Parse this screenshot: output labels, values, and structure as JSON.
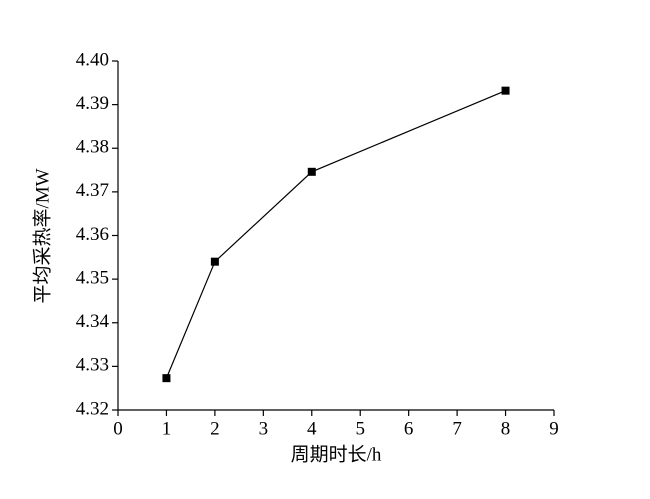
{
  "chart_data": {
    "type": "line",
    "x_label": "周期时长/h",
    "y_label": "平均采热率/MW",
    "x": [
      1,
      2,
      4,
      8
    ],
    "series": [
      {
        "color": "#000000",
        "values": [
          4.3273,
          4.354,
          4.3746,
          4.3932
        ]
      }
    ],
    "xlim": [
      0,
      9
    ],
    "xticks": [
      0,
      1,
      2,
      3,
      4,
      5,
      6,
      7,
      8,
      9
    ],
    "ylim": [
      4.32,
      4.4
    ],
    "yticks": [
      4.32,
      4.33,
      4.34,
      4.35,
      4.36,
      4.37,
      4.38,
      4.39,
      {
        "value": 4.4,
        "label": "4.40"
      }
    ],
    "marker": "square"
  }
}
